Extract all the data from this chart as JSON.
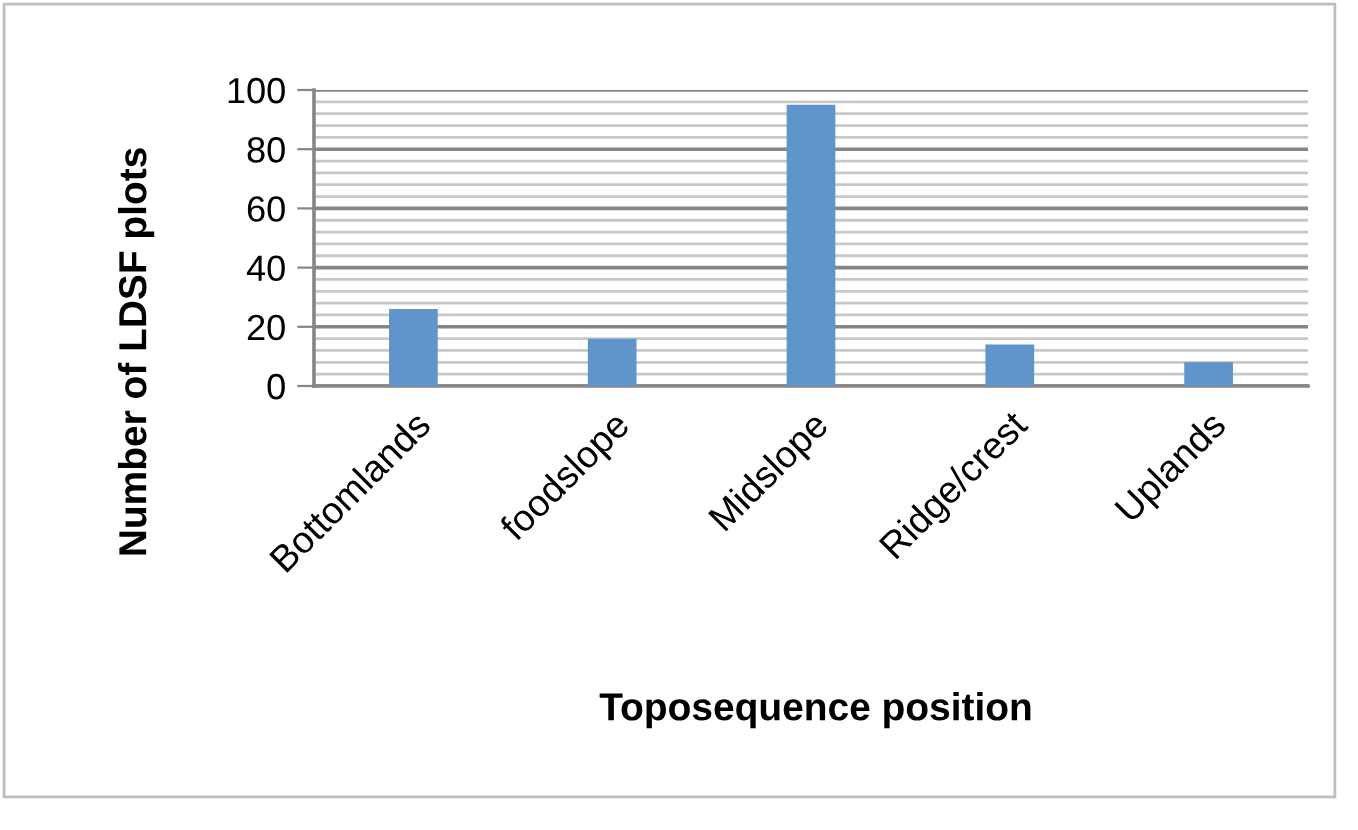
{
  "chart_data": {
    "type": "bar",
    "xlabel": "Toposequence position",
    "ylabel": "Number of LDSF plots",
    "categories": [
      "Bottomlands",
      "foodslope",
      "Midslope",
      "Ridge/crest",
      "Uplands"
    ],
    "values": [
      26,
      16,
      95,
      14,
      8
    ],
    "color": "#5f95cb",
    "ylim": [
      0,
      100
    ],
    "yticks": [
      0,
      {
        "value": 4,
        "label": null
      },
      {
        "value": 8,
        "label": null
      },
      {
        "value": 12,
        "label": null
      },
      {
        "value": 16,
        "label": null
      },
      20,
      {
        "value": 24,
        "label": null
      },
      {
        "value": 28,
        "label": null
      },
      {
        "value": 32,
        "label": null
      },
      {
        "value": 36,
        "label": null
      },
      40,
      {
        "value": 44,
        "label": null
      },
      {
        "value": 48,
        "label": null
      },
      {
        "value": 52,
        "label": null
      },
      {
        "value": 56,
        "label": null
      },
      60,
      {
        "value": 64,
        "label": null
      },
      {
        "value": 68,
        "label": null
      },
      {
        "value": 72,
        "label": null
      },
      {
        "value": 76,
        "label": null
      },
      80,
      {
        "value": 84,
        "label": null
      },
      {
        "value": 88,
        "label": null
      },
      {
        "value": 92,
        "label": null
      },
      {
        "value": 96,
        "label": null
      },
      100
    ],
    "grid": "y"
  }
}
